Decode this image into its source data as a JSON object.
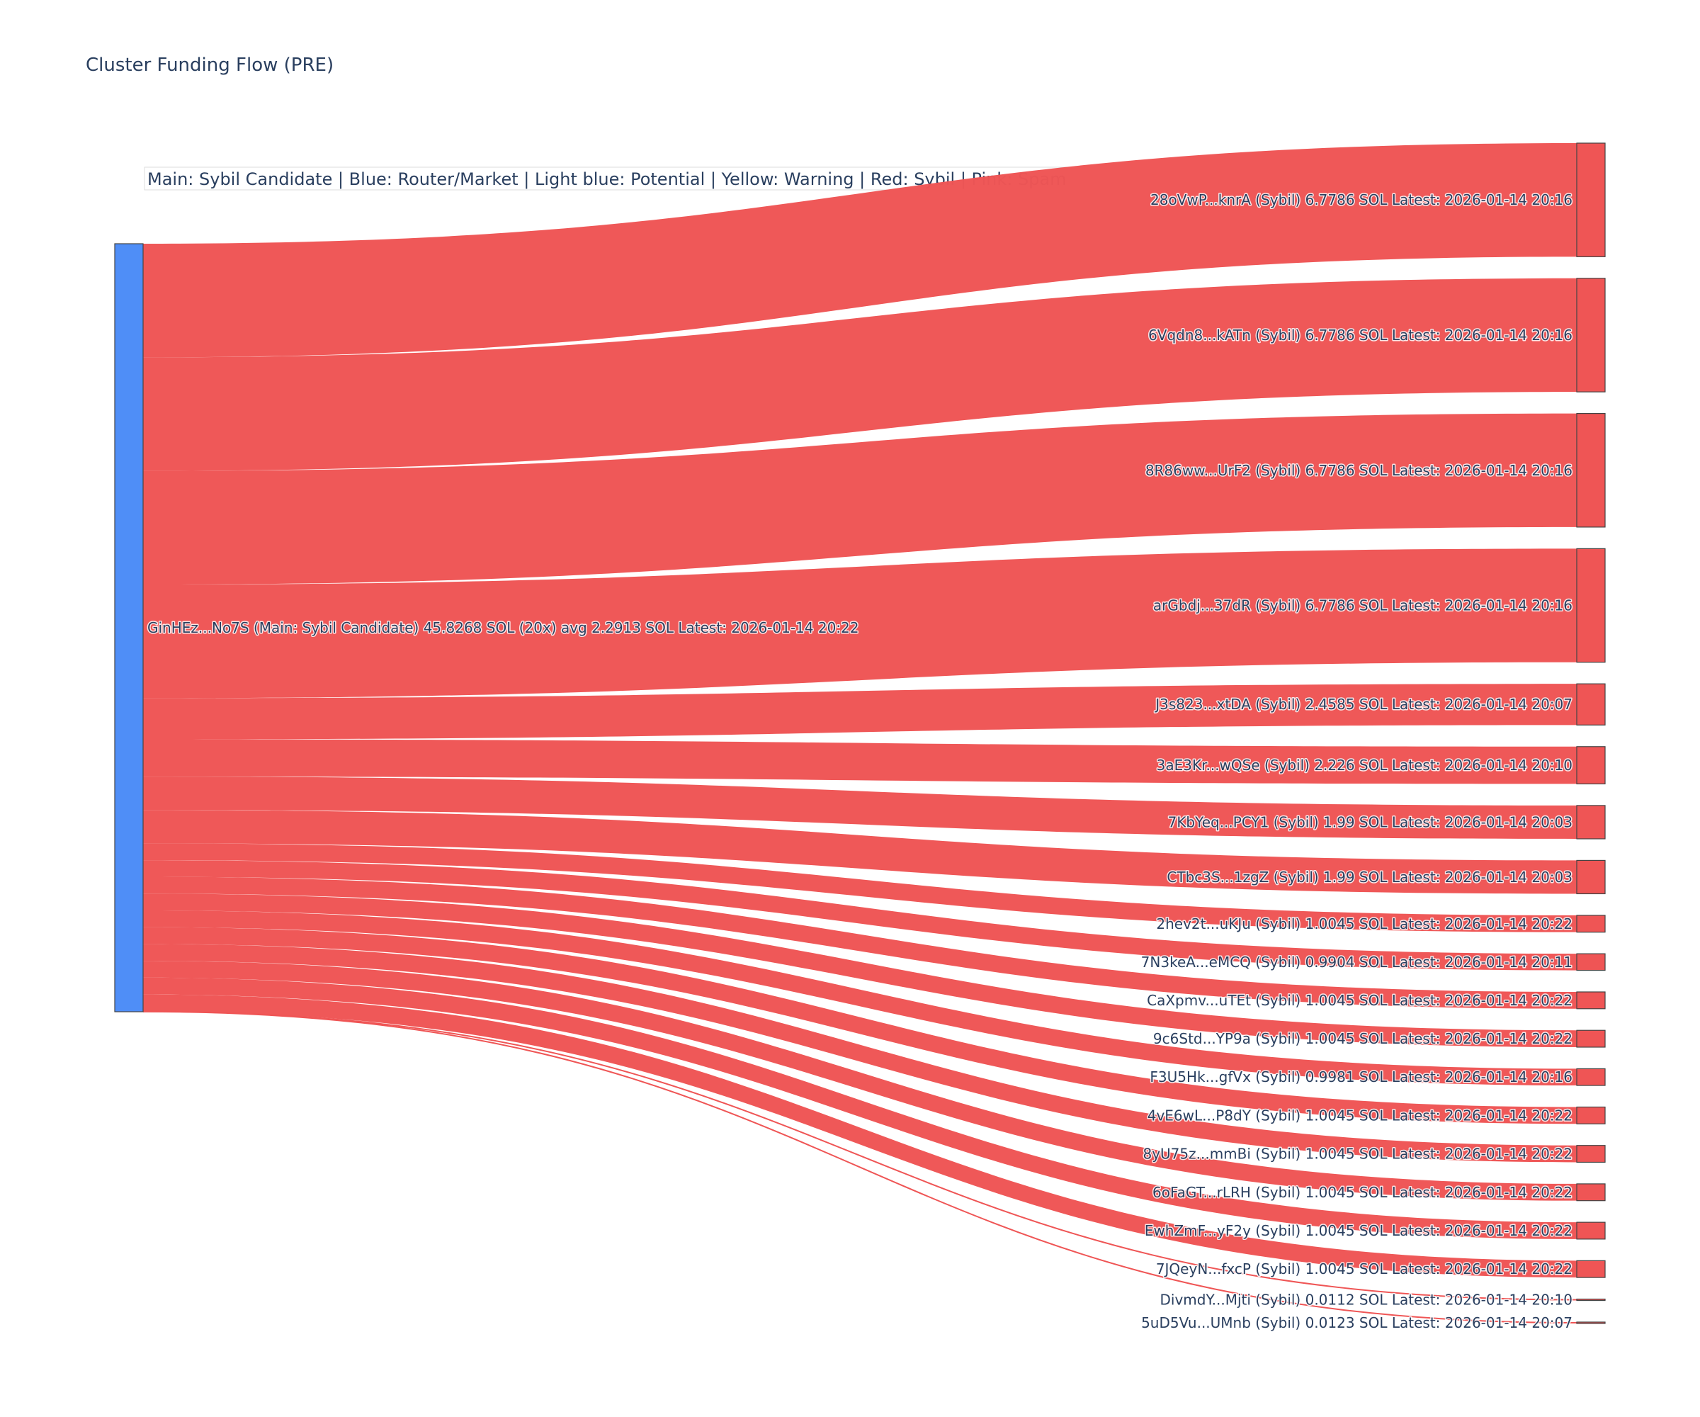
{
  "chart_data": {
    "type": "sankey",
    "title": "Cluster Funding Flow (PRE)",
    "legend_note": "Main: Sybil Candidate  |  Blue: Router/Market | Light blue: Potential | Yellow: Warning | Red: Sybil | Pink: Spam",
    "link_color": "#ef5555",
    "source": {
      "label": "GinHEz...No7S (Main: Sybil Candidate) 45.8268 SOL (20x) avg 2.2913 SOL Latest: 2026-01-14 20:22",
      "value": 45.8268,
      "color": "#4f8ef7"
    },
    "targets": [
      {
        "label": "28oVwP...knrA (Sybil) 6.7786 SOL Latest: 2026-01-14 20:16",
        "value": 6.7786,
        "color": "#ef5555"
      },
      {
        "label": "6Vqdn8...kATn (Sybil) 6.7786 SOL Latest: 2026-01-14 20:16",
        "value": 6.7786,
        "color": "#ef5555"
      },
      {
        "label": "8R86ww...UrF2 (Sybil) 6.7786 SOL Latest: 2026-01-14 20:16",
        "value": 6.7786,
        "color": "#ef5555"
      },
      {
        "label": "arGbdj...37dR (Sybil) 6.7786 SOL Latest: 2026-01-14 20:16",
        "value": 6.7786,
        "color": "#ef5555"
      },
      {
        "label": "J3s823...xtDA (Sybil) 2.4585 SOL Latest: 2026-01-14 20:07",
        "value": 2.4585,
        "color": "#ef5555"
      },
      {
        "label": "3aE3Kr...wQSe (Sybil) 2.226 SOL Latest: 2026-01-14 20:10",
        "value": 2.226,
        "color": "#ef5555"
      },
      {
        "label": "7KbYeq...PCY1 (Sybil) 1.99 SOL Latest: 2026-01-14 20:03",
        "value": 1.99,
        "color": "#ef5555"
      },
      {
        "label": "CTbc3S...1zgZ (Sybil) 1.99 SOL Latest: 2026-01-14 20:03",
        "value": 1.99,
        "color": "#ef5555"
      },
      {
        "label": "2hev2t...uKJu (Sybil) 1.0045 SOL Latest: 2026-01-14 20:22",
        "value": 1.0045,
        "color": "#ef5555"
      },
      {
        "label": "7N3keA...eMCQ (Sybil) 0.9904 SOL Latest: 2026-01-14 20:11",
        "value": 0.9904,
        "color": "#ef5555"
      },
      {
        "label": "CaXpmv...uTEt (Sybil) 1.0045 SOL Latest: 2026-01-14 20:22",
        "value": 1.0045,
        "color": "#ef5555"
      },
      {
        "label": "9c6Std...YP9a (Sybil) 1.0045 SOL Latest: 2026-01-14 20:22",
        "value": 1.0045,
        "color": "#ef5555"
      },
      {
        "label": "F3U5Hk...gfVx (Sybil) 0.9981 SOL Latest: 2026-01-14 20:16",
        "value": 0.9981,
        "color": "#ef5555"
      },
      {
        "label": "4vE6wL...P8dY (Sybil) 1.0045 SOL Latest: 2026-01-14 20:22",
        "value": 1.0045,
        "color": "#ef5555"
      },
      {
        "label": "8yU75z...mmBi (Sybil) 1.0045 SOL Latest: 2026-01-14 20:22",
        "value": 1.0045,
        "color": "#ef5555"
      },
      {
        "label": "6oFaGT...rLRH (Sybil) 1.0045 SOL Latest: 2026-01-14 20:22",
        "value": 1.0045,
        "color": "#ef5555"
      },
      {
        "label": "EwhZmF...yF2y (Sybil) 1.0045 SOL Latest: 2026-01-14 20:22",
        "value": 1.0045,
        "color": "#ef5555"
      },
      {
        "label": "7JQeyN...fxcP (Sybil) 1.0045 SOL Latest: 2026-01-14 20:22",
        "value": 1.0045,
        "color": "#ef5555"
      },
      {
        "label": "DivmdY...Mjti (Sybil) 0.0112 SOL Latest: 2026-01-14 20:10",
        "value": 0.0112,
        "color": "#ef5555"
      },
      {
        "label": "5uD5Vu...UMnb (Sybil) 0.0123 SOL Latest: 2026-01-14 20:07",
        "value": 0.0123,
        "color": "#ef5555"
      }
    ]
  }
}
